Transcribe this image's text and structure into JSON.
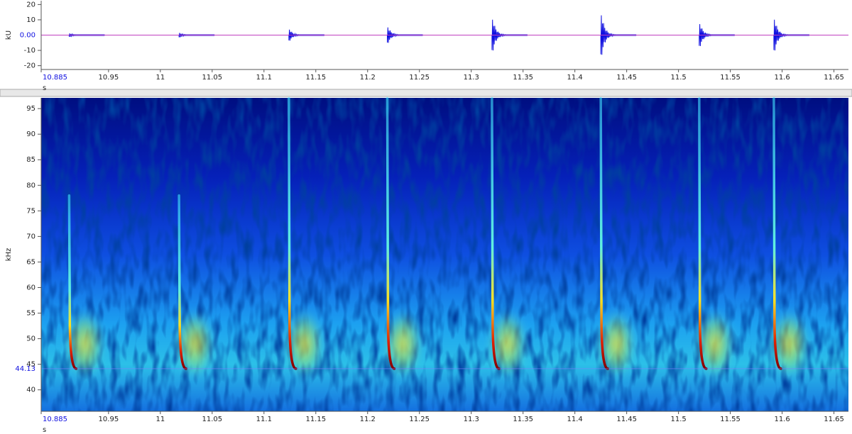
{
  "chart_data": [
    {
      "type": "waveform",
      "y_label": "kU",
      "x_label": "s",
      "color": "#1010e0",
      "cursor_color": "#c040c0",
      "cursor": {
        "value": 0,
        "label": "0.00"
      },
      "x": [
        10.912,
        11.018,
        11.124,
        11.219,
        11.32,
        11.425,
        11.52,
        11.592
      ],
      "values": [
        1.5,
        2,
        5,
        7,
        14,
        18,
        10,
        14
      ],
      "xlim": [
        10.885,
        11.664
      ],
      "ylim": [
        -22.5,
        22.5
      ],
      "xticks": [
        10.885,
        10.95,
        11,
        11.05,
        11.1,
        11.15,
        11.2,
        11.25,
        11.3,
        11.35,
        11.4,
        11.45,
        11.5,
        11.55,
        11.6,
        11.65
      ],
      "yticks": [
        20,
        10,
        -10,
        -20
      ]
    },
    {
      "type": "spectrogram",
      "y_label": "kHz",
      "x_label": "s",
      "cursor": 44.13,
      "x": [
        10.912,
        11.018,
        11.124,
        11.219,
        11.32,
        11.425,
        11.52,
        11.592
      ],
      "values": [
        78,
        78,
        97,
        97,
        97,
        97,
        97,
        97
      ],
      "xlim": [
        10.885,
        11.664
      ],
      "ylim": [
        35.8,
        97.1
      ],
      "xticks": [
        10.885,
        10.95,
        11,
        11.05,
        11.1,
        11.15,
        11.2,
        11.25,
        11.3,
        11.35,
        11.4,
        11.45,
        11.5,
        11.55,
        11.6,
        11.65
      ],
      "yticks": [
        40,
        45,
        50,
        55,
        60,
        65,
        70,
        75,
        80,
        85,
        90,
        95
      ]
    }
  ]
}
